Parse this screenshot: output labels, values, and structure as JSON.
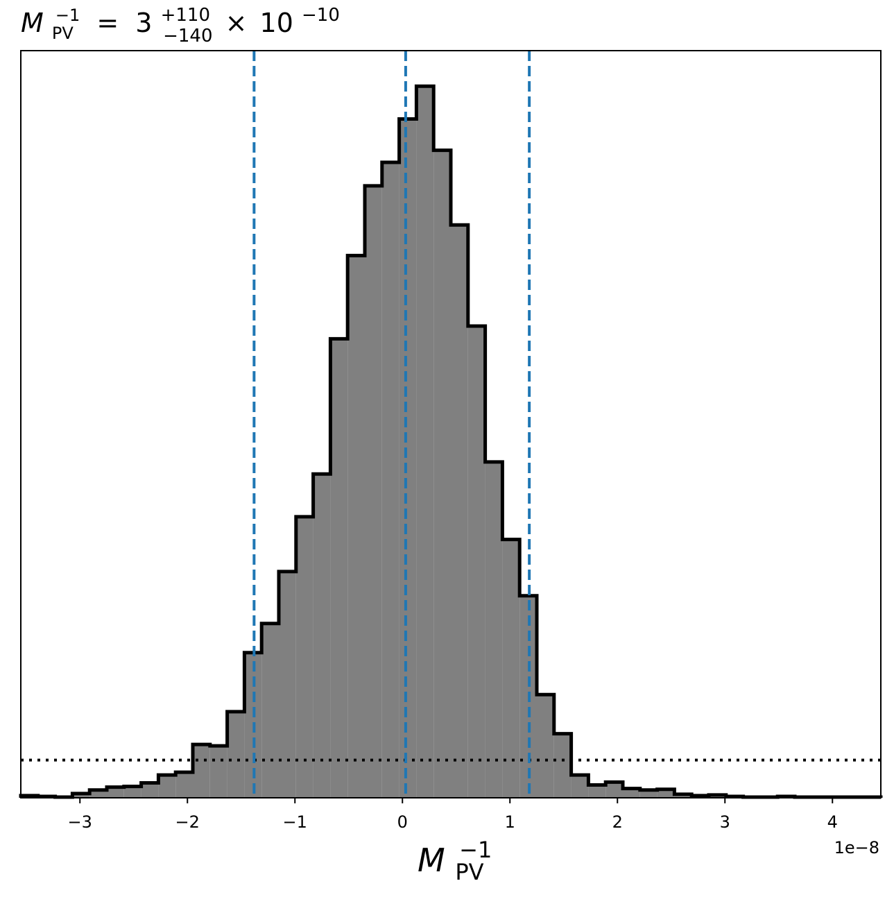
{
  "chart_data": {
    "type": "histogram",
    "title": {
      "symbol": "M",
      "symbol_sub": "PV",
      "symbol_sup": "−1",
      "equals": "=",
      "median": "3",
      "err_plus": "+110",
      "err_minus": "−140",
      "times": "×",
      "base": "10",
      "exponent": "−10"
    },
    "xlabel": {
      "symbol": "M",
      "sub": "PV",
      "sup": "−1"
    },
    "ylabel": "",
    "x_offset_label": "1e−8",
    "x_scale": 1e-08,
    "xlim": [
      -3.55,
      4.45
    ],
    "ylim": [
      0,
      1.05
    ],
    "x_ticks": [
      -3,
      -2,
      -1,
      0,
      1,
      2,
      3,
      4
    ],
    "x_tick_labels": [
      "−3",
      "−2",
      "−1",
      "0",
      "1",
      "2",
      "3",
      "4"
    ],
    "bin_edges": [
      -3.55,
      -3.39,
      -3.23,
      -3.07,
      -2.91,
      -2.75,
      -2.59,
      -2.43,
      -2.27,
      -2.11,
      -1.95,
      -1.79,
      -1.63,
      -1.47,
      -1.31,
      -1.15,
      -0.99,
      -0.83,
      -0.67,
      -0.51,
      -0.35,
      -0.19,
      -0.03,
      0.13,
      0.29,
      0.45,
      0.61,
      0.77,
      0.93,
      1.09,
      1.25,
      1.41,
      1.57,
      1.73,
      1.89,
      2.05,
      2.21,
      2.37,
      2.53,
      2.69,
      2.85,
      3.01,
      3.17,
      3.33,
      3.49,
      3.65,
      3.81,
      3.97,
      4.13,
      4.29,
      4.45
    ],
    "counts": [
      0.003,
      0.002,
      0.001,
      0.006,
      0.011,
      0.015,
      0.016,
      0.021,
      0.032,
      0.036,
      0.075,
      0.073,
      0.121,
      0.204,
      0.245,
      0.318,
      0.395,
      0.455,
      0.645,
      0.762,
      0.86,
      0.893,
      0.954,
      1.0,
      0.91,
      0.805,
      0.663,
      0.472,
      0.363,
      0.284,
      0.145,
      0.09,
      0.032,
      0.018,
      0.022,
      0.013,
      0.011,
      0.012,
      0.005,
      0.003,
      0.004,
      0.002,
      0.001,
      0.001,
      0.002,
      0.001,
      0.001,
      0.001,
      0.001,
      0.001
    ],
    "vlines": [
      -1.38,
      0.03,
      1.18
    ],
    "hline": 0.053,
    "colors": {
      "fill": "#808080",
      "edge": "#000000",
      "vline": "#1f77b4",
      "hline": "#000000"
    },
    "grid": false,
    "legend": "none"
  }
}
